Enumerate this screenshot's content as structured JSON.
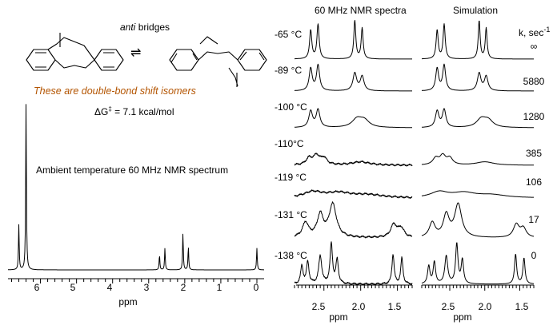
{
  "scheme": {
    "header": "anti",
    "header_rest": " bridges",
    "arrows": "⇌",
    "note": "These are double-bond shift isomers",
    "dg_label": "ΔG",
    "dg_dagger": "‡",
    "dg_value": " = 7.1 kcal/mol"
  },
  "ambient": {
    "label": "Ambient temperature 60 MHz NMR spectrum",
    "axis_title": "ppm",
    "tick_labels": [
      "6",
      "5",
      "4",
      "3",
      "2",
      "1",
      "0"
    ]
  },
  "panels": {
    "nmr_title": "60 MHz NMR spectra",
    "sim_title": "Simulation",
    "k_header": "k, sec",
    "k_header_exp": "-1",
    "axis_title": "ppm",
    "tick_labels": [
      "2.5",
      "2.0",
      "1.5"
    ]
  },
  "chart_data": [
    {
      "type": "line",
      "title": "Ambient temperature 60 MHz NMR spectrum",
      "xlabel": "ppm",
      "xlim": [
        6.9,
        -0.2
      ],
      "reversed_x": true,
      "peaks": [
        {
          "ppm": 6.6,
          "relative_height": 0.27
        },
        {
          "ppm": 6.4,
          "relative_height": 1.0
        },
        {
          "ppm": 2.7,
          "relative_height": 0.09
        },
        {
          "ppm": 2.55,
          "relative_height": 0.13
        },
        {
          "ppm": 2.05,
          "relative_height": 0.22
        },
        {
          "ppm": 1.9,
          "relative_height": 0.14
        },
        {
          "ppm": 0.0,
          "relative_height": 0.13
        }
      ]
    },
    {
      "type": "line",
      "title": "60 MHz NMR spectra",
      "xlabel": "ppm",
      "xlim": [
        2.9,
        1.3
      ],
      "reversed_x": true,
      "series": [
        {
          "name": "-65 °C",
          "k": "∞"
        },
        {
          "name": "-89 °C",
          "k": "5880"
        },
        {
          "name": "-100 °C",
          "k": "1280"
        },
        {
          "name": "-110°C",
          "k": "385"
        },
        {
          "name": "-119 °C",
          "k": "106"
        },
        {
          "name": "-131 °C",
          "k": "17"
        },
        {
          "name": "-138 °C",
          "k": "0"
        }
      ]
    },
    {
      "type": "line",
      "title": "Simulation",
      "xlabel": "ppm",
      "xlim": [
        2.9,
        1.3
      ],
      "reversed_x": true,
      "series_k": [
        "∞",
        "5880",
        "1280",
        "385",
        "106",
        "17",
        "0"
      ]
    }
  ]
}
